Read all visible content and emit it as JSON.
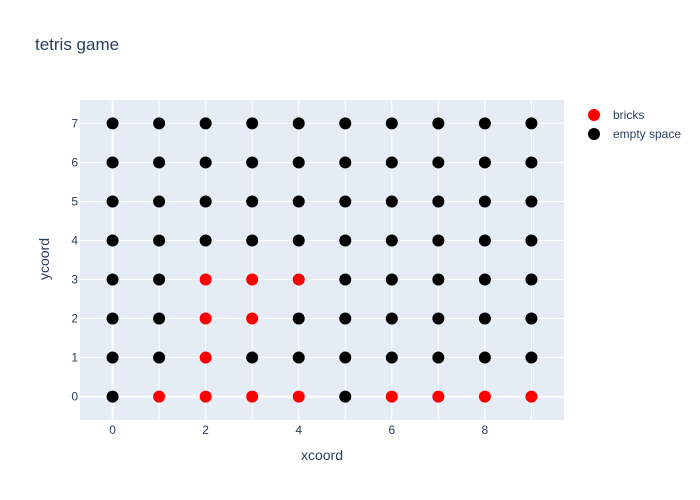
{
  "chart_data": {
    "type": "scatter",
    "title": "tetris game",
    "xlabel": "xcoord",
    "ylabel": "ycoord",
    "xlim": [
      -0.7,
      9.7
    ],
    "ylim": [
      -0.6,
      7.6
    ],
    "xticks": [
      0,
      2,
      4,
      6,
      8
    ],
    "yticks": [
      0,
      1,
      2,
      3,
      4,
      5,
      6,
      7
    ],
    "grid": true,
    "legend_position": "top-right",
    "background": "#e5ecf6",
    "series": [
      {
        "name": "bricks",
        "color": "#ff0000",
        "points": [
          [
            1,
            0
          ],
          [
            2,
            0
          ],
          [
            3,
            0
          ],
          [
            4,
            0
          ],
          [
            6,
            0
          ],
          [
            7,
            0
          ],
          [
            8,
            0
          ],
          [
            9,
            0
          ],
          [
            2,
            1
          ],
          [
            2,
            2
          ],
          [
            3,
            2
          ],
          [
            2,
            3
          ],
          [
            3,
            3
          ],
          [
            4,
            3
          ]
        ]
      },
      {
        "name": "empty space",
        "color": "#000000",
        "points": [
          [
            0,
            0
          ],
          [
            5,
            0
          ],
          [
            0,
            1
          ],
          [
            1,
            1
          ],
          [
            3,
            1
          ],
          [
            4,
            1
          ],
          [
            5,
            1
          ],
          [
            6,
            1
          ],
          [
            7,
            1
          ],
          [
            8,
            1
          ],
          [
            9,
            1
          ],
          [
            0,
            2
          ],
          [
            1,
            2
          ],
          [
            4,
            2
          ],
          [
            5,
            2
          ],
          [
            6,
            2
          ],
          [
            7,
            2
          ],
          [
            8,
            2
          ],
          [
            9,
            2
          ],
          [
            0,
            3
          ],
          [
            1,
            3
          ],
          [
            5,
            3
          ],
          [
            6,
            3
          ],
          [
            7,
            3
          ],
          [
            8,
            3
          ],
          [
            9,
            3
          ],
          [
            0,
            4
          ],
          [
            1,
            4
          ],
          [
            2,
            4
          ],
          [
            3,
            4
          ],
          [
            4,
            4
          ],
          [
            5,
            4
          ],
          [
            6,
            4
          ],
          [
            7,
            4
          ],
          [
            8,
            4
          ],
          [
            9,
            4
          ],
          [
            0,
            5
          ],
          [
            1,
            5
          ],
          [
            2,
            5
          ],
          [
            3,
            5
          ],
          [
            4,
            5
          ],
          [
            5,
            5
          ],
          [
            6,
            5
          ],
          [
            7,
            5
          ],
          [
            8,
            5
          ],
          [
            9,
            5
          ],
          [
            0,
            6
          ],
          [
            1,
            6
          ],
          [
            2,
            6
          ],
          [
            3,
            6
          ],
          [
            4,
            6
          ],
          [
            5,
            6
          ],
          [
            6,
            6
          ],
          [
            7,
            6
          ],
          [
            8,
            6
          ],
          [
            9,
            6
          ],
          [
            0,
            7
          ],
          [
            1,
            7
          ],
          [
            2,
            7
          ],
          [
            3,
            7
          ],
          [
            4,
            7
          ],
          [
            5,
            7
          ],
          [
            6,
            7
          ],
          [
            7,
            7
          ],
          [
            8,
            7
          ],
          [
            9,
            7
          ]
        ]
      }
    ]
  }
}
